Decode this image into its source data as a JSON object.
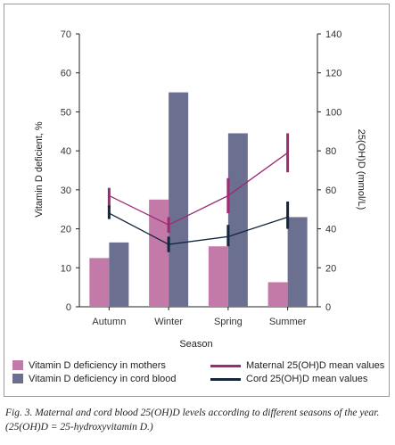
{
  "chart_data": {
    "type": "bar",
    "categories": [
      "Autumn",
      "Winter",
      "Spring",
      "Summer"
    ],
    "xlabel": "Season",
    "ylabel": "Vitamin D deficient, %",
    "ylabel_right": "25(OH)D (mmol/L)",
    "ylim": [
      0,
      70
    ],
    "ylim_right": [
      0,
      140
    ],
    "yticks": [
      0,
      10,
      20,
      30,
      40,
      50,
      60,
      70
    ],
    "yticks_right": [
      0,
      20,
      40,
      60,
      80,
      100,
      120,
      140
    ],
    "grid": false,
    "legend_position": "bottom",
    "series": [
      {
        "name": "Vitamin D deficiency in mothers",
        "kind": "bar",
        "axis": "left",
        "color": "#c47aa8",
        "values": [
          12.5,
          27.5,
          15.5,
          6.3
        ]
      },
      {
        "name": "Vitamin D deficiency in cord blood",
        "kind": "bar",
        "axis": "left",
        "color": "#6b7090",
        "values": [
          16.5,
          55,
          44.5,
          23
        ]
      },
      {
        "name": "Maternal 25(OH)D mean values",
        "kind": "line",
        "axis": "right",
        "color": "#9c2a74",
        "values": [
          57,
          42,
          57,
          79
        ],
        "error_low": [
          51,
          38,
          48,
          69
        ],
        "error_high": [
          61,
          46,
          66,
          89
        ]
      },
      {
        "name": "Cord 25(OH)D mean values",
        "kind": "line",
        "axis": "right",
        "color": "#14263e",
        "values": [
          48,
          32,
          36,
          46
        ],
        "error_low": [
          45,
          28,
          31,
          40
        ],
        "error_high": [
          52,
          36,
          42,
          54
        ]
      }
    ]
  },
  "caption": "Fig. 3. Maternal and cord blood 25(OH)D levels according to different seasons of the year. (25(OH)D = 25-hydroxyvitamin D.)"
}
